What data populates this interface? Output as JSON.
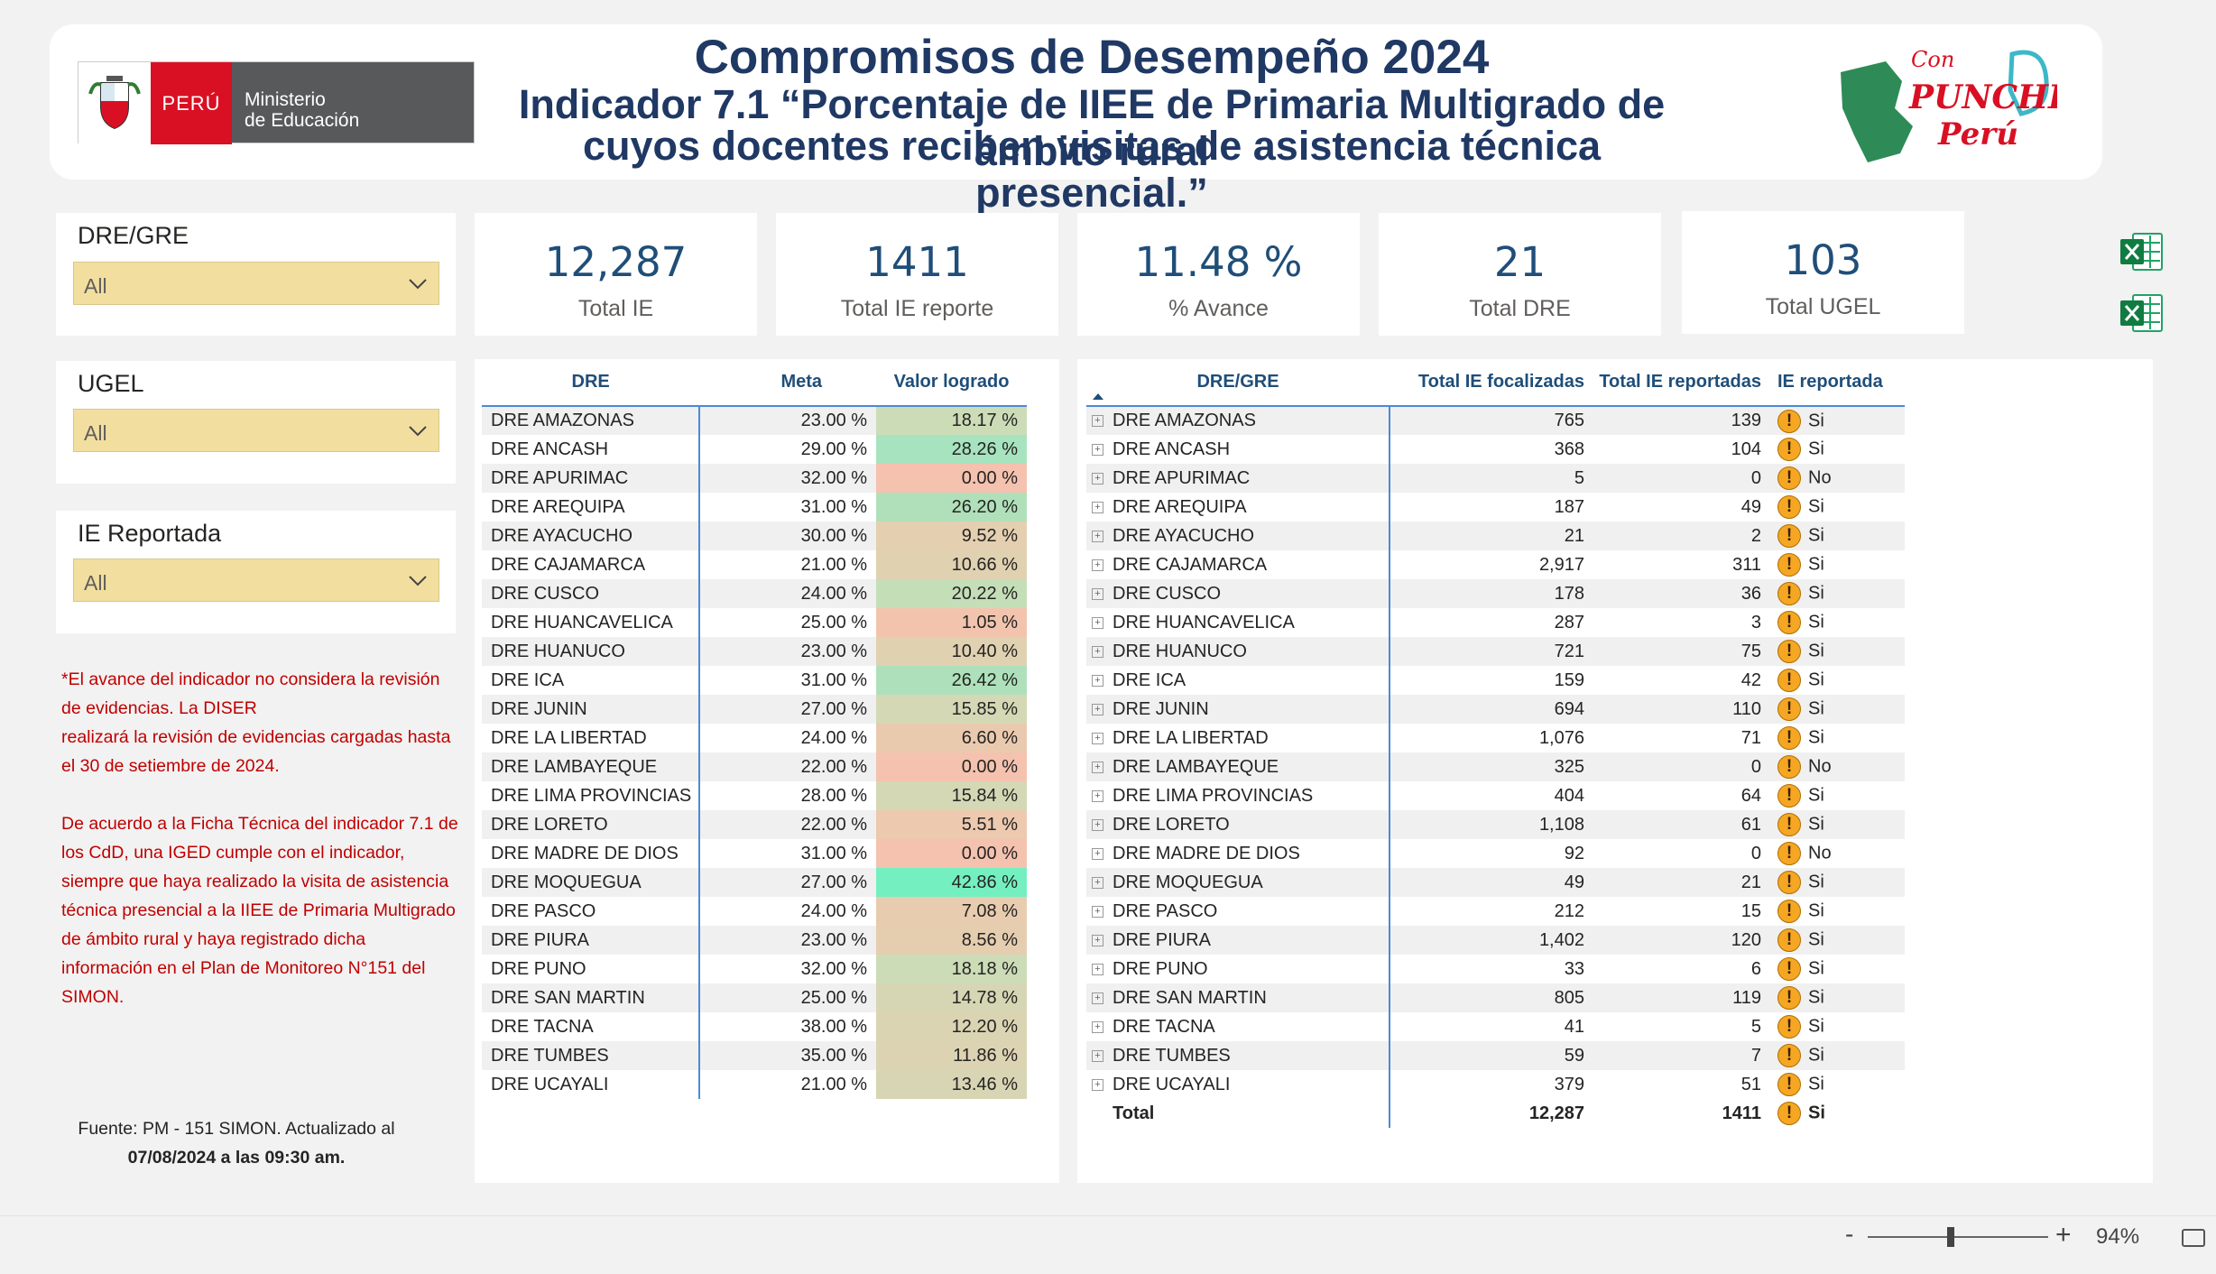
{
  "header": {
    "title_line1": "Compromisos de Desempeño 2024",
    "title_line2": "Indicador 7.1 “Porcentaje de IIEE de Primaria Multigrado de ámbito rural",
    "title_line3": "cuyos docentes reciben visitas de asistencia técnica presencial.”",
    "logo_peru": "PERÚ",
    "logo_ministerio_1": "Ministerio",
    "logo_ministerio_2": "de Educación",
    "logo_punche_1": "Con",
    "logo_punche_2": "PUNCHE",
    "logo_punche_3": "Perú"
  },
  "slicers": {
    "dre_gre": {
      "title": "DRE/GRE",
      "value": "All"
    },
    "ugel": {
      "title": "UGEL",
      "value": "All"
    },
    "ie_reportada": {
      "title": "IE Reportada",
      "value": "All"
    }
  },
  "kpis": {
    "total_ie": {
      "value": "12,287",
      "label": "Total IE"
    },
    "total_ie_reporte": {
      "value": "1411",
      "label": "Total IE reporte"
    },
    "avance": {
      "value": "11.48 %",
      "label": "% Avance"
    },
    "total_dre": {
      "value": "21",
      "label": "Total DRE"
    },
    "total_ugel": {
      "value": "103",
      "label": "Total UGEL"
    }
  },
  "notes": {
    "p1_a": "*El avance del indicador no considera la revisión de evidencias. La DISER",
    "p1_b": "realizará la revisión de evidencias cargadas hasta el 30 de setiembre de 2024.",
    "p2": "De acuerdo a la Ficha Técnica del indicador 7.1 de los CdD, una IGED cumple con el indicador, siempre que haya realizado la visita de asistencia técnica presencial a la IIEE de Primaria Multigrado de ámbito rural y haya registrado dicha información en el Plan de Monitoreo N°151 del SIMON.",
    "source_1": "Fuente: PM - 151 SIMON. Actualizado al",
    "source_2": "07/08/2024 a las 09:30 am."
  },
  "dre_table": {
    "headers": {
      "dre": "DRE",
      "meta": "Meta",
      "valor": "Valor logrado"
    },
    "rows": [
      {
        "dre": "DRE AMAZONAS",
        "meta": "23.00 %",
        "valor": "18.17 %",
        "color": "#ccdcb7"
      },
      {
        "dre": "DRE ANCASH",
        "meta": "29.00 %",
        "valor": "28.26 %",
        "color": "#a7e3bf"
      },
      {
        "dre": "DRE APURIMAC",
        "meta": "32.00 %",
        "valor": "0.00 %",
        "color": "#f4c2ae"
      },
      {
        "dre": "DRE AREQUIPA",
        "meta": "31.00 %",
        "valor": "26.20 %",
        "color": "#b0e0ba"
      },
      {
        "dre": "DRE AYACUCHO",
        "meta": "30.00 %",
        "valor": "9.52 %",
        "color": "#e4cfb0"
      },
      {
        "dre": "DRE CAJAMARCA",
        "meta": "21.00 %",
        "valor": "10.66 %",
        "color": "#e0d1b1"
      },
      {
        "dre": "DRE CUSCO",
        "meta": "24.00 %",
        "valor": "20.22 %",
        "color": "#c4deb8"
      },
      {
        "dre": "DRE HUANCAVELICA",
        "meta": "25.00 %",
        "valor": "1.05 %",
        "color": "#f2c4ae"
      },
      {
        "dre": "DRE HUANUCO",
        "meta": "23.00 %",
        "valor": "10.40 %",
        "color": "#e0d1b1"
      },
      {
        "dre": "DRE ICA",
        "meta": "31.00 %",
        "valor": "26.42 %",
        "color": "#aee1bb"
      },
      {
        "dre": "DRE JUNIN",
        "meta": "27.00 %",
        "valor": "15.85 %",
        "color": "#d4d8b5"
      },
      {
        "dre": "DRE LA LIBERTAD",
        "meta": "24.00 %",
        "valor": "6.60 %",
        "color": "#eacaaf"
      },
      {
        "dre": "DRE LAMBAYEQUE",
        "meta": "22.00 %",
        "valor": "0.00 %",
        "color": "#f4c2ae"
      },
      {
        "dre": "DRE LIMA PROVINCIAS",
        "meta": "28.00 %",
        "valor": "15.84 %",
        "color": "#d4d8b5"
      },
      {
        "dre": "DRE LORETO",
        "meta": "22.00 %",
        "valor": "5.51 %",
        "color": "#ecc9af"
      },
      {
        "dre": "DRE MADRE DE DIOS",
        "meta": "31.00 %",
        "valor": "0.00 %",
        "color": "#f4c2ae"
      },
      {
        "dre": "DRE MOQUEGUA",
        "meta": "27.00 %",
        "valor": "42.86 %",
        "color": "#74f0c0"
      },
      {
        "dre": "DRE PASCO",
        "meta": "24.00 %",
        "valor": "7.08 %",
        "color": "#e8ccaf"
      },
      {
        "dre": "DRE PIURA",
        "meta": "23.00 %",
        "valor": "8.56 %",
        "color": "#e5cdb0"
      },
      {
        "dre": "DRE PUNO",
        "meta": "32.00 %",
        "valor": "18.18 %",
        "color": "#ccdcb7"
      },
      {
        "dre": "DRE SAN MARTIN",
        "meta": "25.00 %",
        "valor": "14.78 %",
        "color": "#d6d6b4"
      },
      {
        "dre": "DRE TACNA",
        "meta": "38.00 %",
        "valor": "12.20 %",
        "color": "#dbd4b3"
      },
      {
        "dre": "DRE TUMBES",
        "meta": "35.00 %",
        "valor": "11.86 %",
        "color": "#dcd3b2"
      },
      {
        "dre": "DRE UCAYALI",
        "meta": "21.00 %",
        "valor": "13.46 %",
        "color": "#d8d5b4"
      }
    ]
  },
  "gre_table": {
    "headers": {
      "dre": "DRE/GRE",
      "focalizadas": "Total IE focalizadas",
      "reportadas": "Total IE reportadas",
      "ie_reportada": "IE reportada"
    },
    "rows": [
      {
        "dre": "DRE AMAZONAS",
        "foc": "765",
        "rep": "139",
        "ie": "Si"
      },
      {
        "dre": "DRE ANCASH",
        "foc": "368",
        "rep": "104",
        "ie": "Si"
      },
      {
        "dre": "DRE APURIMAC",
        "foc": "5",
        "rep": "0",
        "ie": "No"
      },
      {
        "dre": "DRE AREQUIPA",
        "foc": "187",
        "rep": "49",
        "ie": "Si"
      },
      {
        "dre": "DRE AYACUCHO",
        "foc": "21",
        "rep": "2",
        "ie": "Si"
      },
      {
        "dre": "DRE CAJAMARCA",
        "foc": "2,917",
        "rep": "311",
        "ie": "Si"
      },
      {
        "dre": "DRE CUSCO",
        "foc": "178",
        "rep": "36",
        "ie": "Si"
      },
      {
        "dre": "DRE HUANCAVELICA",
        "foc": "287",
        "rep": "3",
        "ie": "Si"
      },
      {
        "dre": "DRE HUANUCO",
        "foc": "721",
        "rep": "75",
        "ie": "Si"
      },
      {
        "dre": "DRE ICA",
        "foc": "159",
        "rep": "42",
        "ie": "Si"
      },
      {
        "dre": "DRE JUNIN",
        "foc": "694",
        "rep": "110",
        "ie": "Si"
      },
      {
        "dre": "DRE LA LIBERTAD",
        "foc": "1,076",
        "rep": "71",
        "ie": "Si"
      },
      {
        "dre": "DRE LAMBAYEQUE",
        "foc": "325",
        "rep": "0",
        "ie": "No"
      },
      {
        "dre": "DRE LIMA PROVINCIAS",
        "foc": "404",
        "rep": "64",
        "ie": "Si"
      },
      {
        "dre": "DRE LORETO",
        "foc": "1,108",
        "rep": "61",
        "ie": "Si"
      },
      {
        "dre": "DRE MADRE DE DIOS",
        "foc": "92",
        "rep": "0",
        "ie": "No"
      },
      {
        "dre": "DRE MOQUEGUA",
        "foc": "49",
        "rep": "21",
        "ie": "Si"
      },
      {
        "dre": "DRE PASCO",
        "foc": "212",
        "rep": "15",
        "ie": "Si"
      },
      {
        "dre": "DRE PIURA",
        "foc": "1,402",
        "rep": "120",
        "ie": "Si"
      },
      {
        "dre": "DRE PUNO",
        "foc": "33",
        "rep": "6",
        "ie": "Si"
      },
      {
        "dre": "DRE SAN MARTIN",
        "foc": "805",
        "rep": "119",
        "ie": "Si"
      },
      {
        "dre": "DRE TACNA",
        "foc": "41",
        "rep": "5",
        "ie": "Si"
      },
      {
        "dre": "DRE TUMBES",
        "foc": "59",
        "rep": "7",
        "ie": "Si"
      },
      {
        "dre": "DRE UCAYALI",
        "foc": "379",
        "rep": "51",
        "ie": "Si"
      }
    ],
    "total": {
      "label": "Total",
      "foc": "12,287",
      "rep": "1411",
      "ie": "Si"
    }
  },
  "statusbar": {
    "zoom_minus": "-",
    "zoom_plus": "+",
    "zoom_level": "94%"
  },
  "colors": {
    "title": "#1f3864",
    "kpi": "#1f4e79",
    "slicer": "#f2dfa0",
    "note": "#c00000",
    "accent_line": "#4a8bd4",
    "warning": "#f5a623"
  }
}
